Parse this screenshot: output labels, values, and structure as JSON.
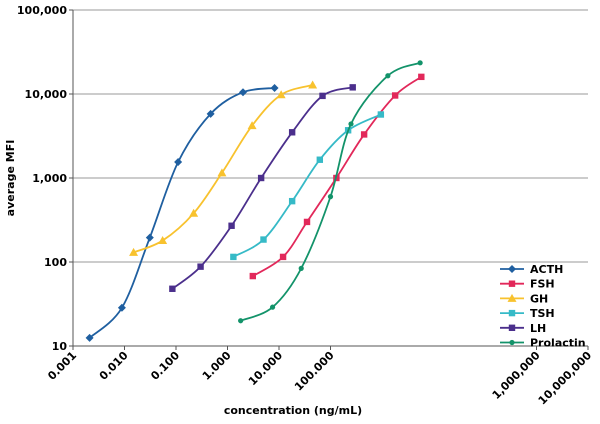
{
  "chart_data": {
    "type": "line",
    "title": "",
    "xlabel": "concentration (ng/mL)",
    "ylabel": "average MFI",
    "xscale": "log",
    "yscale": "log",
    "xlim": [
      0.001,
      10000000
    ],
    "ylim": [
      10,
      100000
    ],
    "x_ticks": [
      0.001,
      0.01,
      0.1,
      1,
      10,
      100,
      1000000,
      10000000
    ],
    "x_tick_labels": [
      "0.001",
      "0.010",
      "0.100",
      "1.000",
      "10.000",
      "100.000",
      "1,000,000",
      "10,000,000"
    ],
    "y_ticks": [
      10,
      100,
      1000,
      10000,
      100000
    ],
    "y_tick_labels": [
      "10",
      "100",
      "1,000",
      "10,000",
      "100,000"
    ],
    "grid": "horizontal",
    "legend_position": "bottom-right",
    "series": [
      {
        "name": "ACTH",
        "color": "#1f5fa0",
        "marker": "diamond",
        "points": [
          [
            0.0021,
            12.5
          ],
          [
            0.0089,
            28.5
          ],
          [
            0.031,
            195
          ],
          [
            0.11,
            1550
          ],
          [
            0.47,
            5800
          ],
          [
            2.0,
            10500
          ],
          [
            8.2,
            11800
          ]
        ]
      },
      {
        "name": "FSH",
        "color": "#e2285a",
        "marker": "square",
        "points": [
          [
            3.1,
            68
          ],
          [
            12,
            115
          ],
          [
            35,
            300
          ],
          [
            130,
            1000
          ],
          [
            450,
            3300
          ],
          [
            1800,
            9600
          ],
          [
            5800,
            16000
          ]
        ]
      },
      {
        "name": "GH",
        "color": "#f8c22e",
        "marker": "triangle",
        "points": [
          [
            0.015,
            130
          ],
          [
            0.055,
            180
          ],
          [
            0.22,
            380
          ],
          [
            0.78,
            1150
          ],
          [
            3.0,
            4200
          ],
          [
            11,
            9800
          ],
          [
            45,
            12800
          ]
        ]
      },
      {
        "name": "TSH",
        "color": "#36bac7",
        "marker": "square",
        "points": [
          [
            1.3,
            115
          ],
          [
            5.0,
            185
          ],
          [
            18,
            530
          ],
          [
            62,
            1650
          ],
          [
            220,
            3700
          ],
          [
            950,
            5700
          ]
        ]
      },
      {
        "name": "LH",
        "color": "#4b2f8c",
        "marker": "square",
        "points": [
          [
            0.085,
            48
          ],
          [
            0.3,
            88
          ],
          [
            1.2,
            270
          ],
          [
            4.5,
            1000
          ],
          [
            18,
            3500
          ],
          [
            70,
            9500
          ],
          [
            270,
            12000
          ]
        ]
      },
      {
        "name": "Prolactin",
        "color": "#13936a",
        "marker": "dot",
        "points": [
          [
            1.8,
            20
          ],
          [
            7.5,
            29
          ],
          [
            27,
            84
          ],
          [
            100,
            600
          ],
          [
            250,
            4400
          ],
          [
            1300,
            16500
          ],
          [
            5500,
            23500
          ]
        ]
      }
    ]
  }
}
